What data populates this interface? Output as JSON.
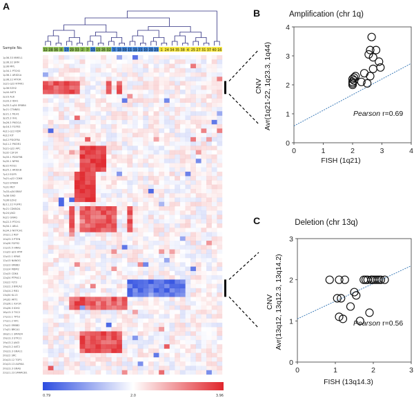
{
  "chart_data": [
    {
      "panel": "A",
      "type": "heatmap",
      "row_header": "Sample No.",
      "sample_labels": [
        "12",
        "28",
        "36",
        "8",
        "17",
        "29",
        "33",
        "2",
        "7",
        "13",
        "15",
        "26",
        "32",
        "3",
        "18",
        "39",
        "11",
        "19",
        "21",
        "10",
        "20",
        "23",
        "1",
        "24",
        "34",
        "35",
        "38",
        "4",
        "25",
        "27",
        "31",
        "37",
        "40",
        "16"
      ],
      "rows": [
        "1p36.33 MMEL1",
        "1p36.32 SRM",
        "1p36 MPL",
        "1p34.1 PTCH2",
        "1p36.1 ARID1A",
        "1p36.22 MTOR",
        "1q21-q22 NTRK1",
        "1p36 EZH2",
        "1q44 AKT3",
        "2p23 ALK",
        "2q33.3 IDH1",
        "2q33.3-q34 ERBB4",
        "3p21 CTNNB1",
        "3p21.1 MLH1",
        "3p25.3 VHL",
        "3q26.3 PIK3CA",
        "4p16.3 FGFR3",
        "4q11-q12 KDR",
        "4q12 KIT",
        "4q12 PDGFRA",
        "5q11.2 PIK3R1",
        "5q21-q22 APC",
        "5q32 CSF1R",
        "5q33.1 PDGFRB",
        "5q35.1 NPM1",
        "6p22 ROS1",
        "6q25.1 ARID1B",
        "7p12 EGFR",
        "7q21-q22 CDK6",
        "7q22 EPHB4",
        "7q31 MET",
        "7q33-q34 BRAF",
        "7q36 SMO",
        "7q36 EZH2",
        "8p11.22 FGFR1",
        "9p21 CDKN2A",
        "9p24 JAK2",
        "9q21 GNAQ",
        "9q22.3 PTCH1",
        "9q34.1 ABL1",
        "9q34.3 NOTCH1",
        "10q11.2 RET",
        "10q23.3 PTEN",
        "10q26 FGFR2",
        "11p15.5 HRAS",
        "11q22-q23 ATM",
        "12p12.1 KRAS",
        "12p13 NANOG",
        "12q13 ERBB3",
        "12q14 MDM2",
        "12q15 CDK4",
        "12q24 PTPN11",
        "13q12 FLT3",
        "13q12.3 BRCA2",
        "13q14.2 RB1",
        "13q34 KL13",
        "14q32 AKT1",
        "15q26.1 IGF1R",
        "15q26.3 IDH2",
        "16p13.3 TSC2",
        "17p13.1 TP53",
        "17q11.2 NF1",
        "17q12 ERBB2",
        "17q21 BRCA1",
        "18q21.1 SMAD4",
        "19p13.3 STK11",
        "19p13.2 JAK3",
        "19q13.2 AKT2",
        "19q13.3 GNA11",
        "20q12 SRC",
        "20q13.12 TOP1",
        "20q13.13 AURKA",
        "20q13.3 GNAS",
        "22q11.23 SMARCB1"
      ],
      "colorbar": {
        "min_label": "0.79",
        "mid_label": "2.0",
        "max_label": "3.96",
        "low_color": "#2d4de0",
        "mid_color": "#ffffff",
        "high_color": "#e0262c"
      },
      "dendrogram_color": "#2b2b7f",
      "sample_colors": {
        "first_group": "#7fb241",
        "second_group": "#2f78d0",
        "third_group": "#f2e22b"
      }
    },
    {
      "panel": "B",
      "type": "scatter",
      "title": "Amplification (chr 1q)",
      "xlabel": "FISH (1q21)",
      "ylabel_line1": "CNV",
      "ylabel_line2": "Avr(1q21-22, 1q23.3, 1q44)",
      "xlim": [
        0,
        4
      ],
      "ylim": [
        0,
        4
      ],
      "xticks": [
        "0",
        "1",
        "2",
        "3",
        "4"
      ],
      "yticks": [
        "0",
        "1",
        "2",
        "3",
        "4"
      ],
      "x": [
        2.0,
        2.0,
        2.05,
        2.1,
        2.0,
        2.0,
        2.05,
        2.3,
        2.4,
        2.5,
        2.55,
        2.6,
        2.6,
        2.65,
        2.7,
        2.7,
        2.8,
        2.9,
        2.95
      ],
      "y": [
        2.1,
        2.2,
        2.25,
        2.3,
        2.0,
        2.05,
        2.15,
        2.1,
        2.4,
        2.05,
        3.05,
        2.3,
        3.2,
        3.65,
        2.55,
        2.95,
        3.2,
        2.8,
        2.6
      ],
      "trend": {
        "slope": 0.54,
        "intercept": 0.58
      },
      "pearson_label": "Pearson",
      "pearson_value": "r=0.69"
    },
    {
      "panel": "C",
      "type": "scatter",
      "title": "Deletion (chr 13q)",
      "xlabel": "FISH (13q14.3)",
      "ylabel_line1": "CNV",
      "ylabel_line2": "Avr(13q12, 13q12.3, 13q14.2)",
      "xlim": [
        0,
        3
      ],
      "ylim": [
        0,
        3
      ],
      "xticks": [
        "0",
        "1",
        "2",
        "3"
      ],
      "yticks": [
        "0",
        "1",
        "2",
        "3"
      ],
      "x": [
        0.85,
        1.1,
        1.25,
        1.05,
        1.15,
        1.5,
        1.4,
        1.55,
        1.75,
        1.85,
        1.95,
        2.0,
        2.05,
        2.1,
        2.15,
        2.2,
        2.3,
        1.9,
        1.8,
        1.2,
        1.65,
        1.1,
        1.95
      ],
      "y": [
        2.0,
        2.0,
        2.0,
        1.55,
        1.55,
        1.7,
        1.35,
        1.62,
        2.0,
        2.0,
        2.0,
        2.0,
        2.0,
        2.0,
        2.0,
        2.0,
        2.0,
        1.2,
        2.0,
        1.05,
        1.0,
        1.1,
        2.0
      ],
      "trend": {
        "slope": 0.43,
        "intercept": 1.05
      },
      "pearson_label": "Pearson",
      "pearson_value": "r=0.56"
    }
  ],
  "labels": {
    "panel_a": "A",
    "panel_b": "B",
    "panel_c": "C"
  }
}
